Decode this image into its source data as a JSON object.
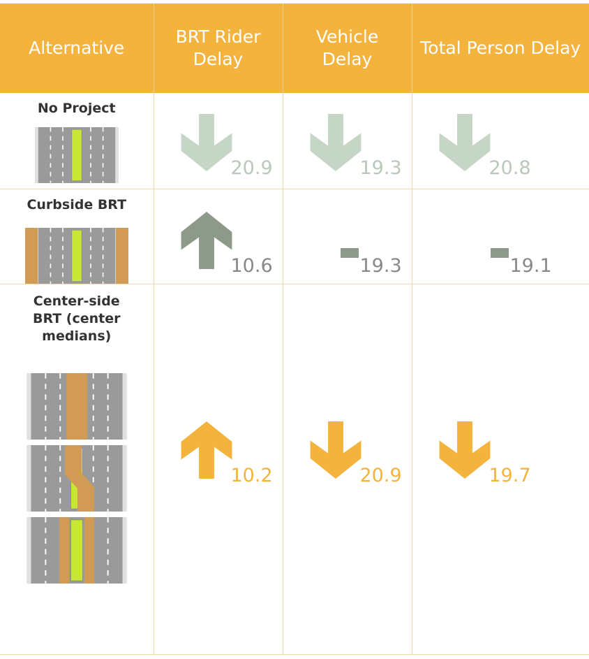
{
  "table": {
    "header": [
      "Alternative",
      "BRT Rider Delay",
      "Vehicle Delay",
      "Total Person Delay"
    ],
    "rows": [
      {
        "label": "No Project",
        "values": [
          20.9,
          19.3,
          20.8
        ]
      },
      {
        "label": "Curbside BRT",
        "values": [
          10.6,
          19.3,
          19.1
        ]
      },
      {
        "label": "Center-side BRT (center medians)",
        "values": [
          10.2,
          20.9,
          19.7
        ]
      }
    ]
  }
}
